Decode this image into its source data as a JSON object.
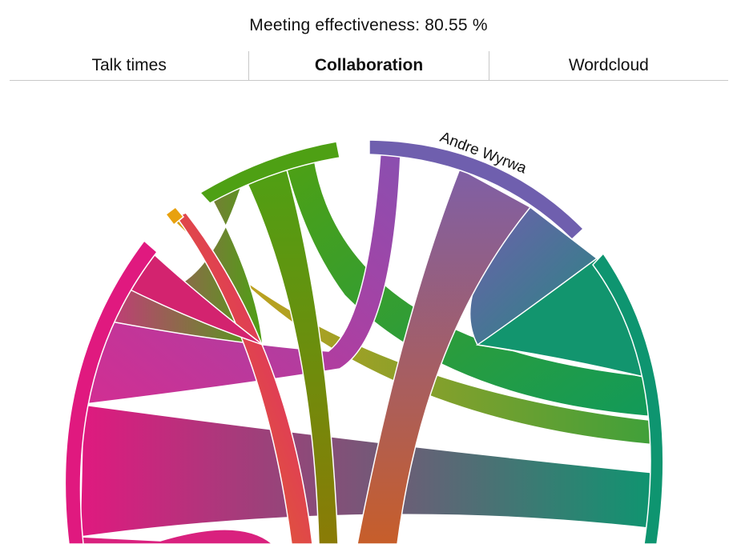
{
  "header": {
    "metric_text": "Meeting effectiveness: 80.55 %"
  },
  "tabs": [
    {
      "label": "Talk times",
      "active": false
    },
    {
      "label": "Collaboration",
      "active": true
    },
    {
      "label": "Wordcloud",
      "active": false
    }
  ],
  "chart": {
    "type": "chord",
    "visible_label": "Andre Wyrwa",
    "colors": {
      "magenta": "#e0197f",
      "green": "#4ea014",
      "purple": "#6f5fae",
      "teal": "#0e9570",
      "orange": "#e8a10f"
    }
  }
}
